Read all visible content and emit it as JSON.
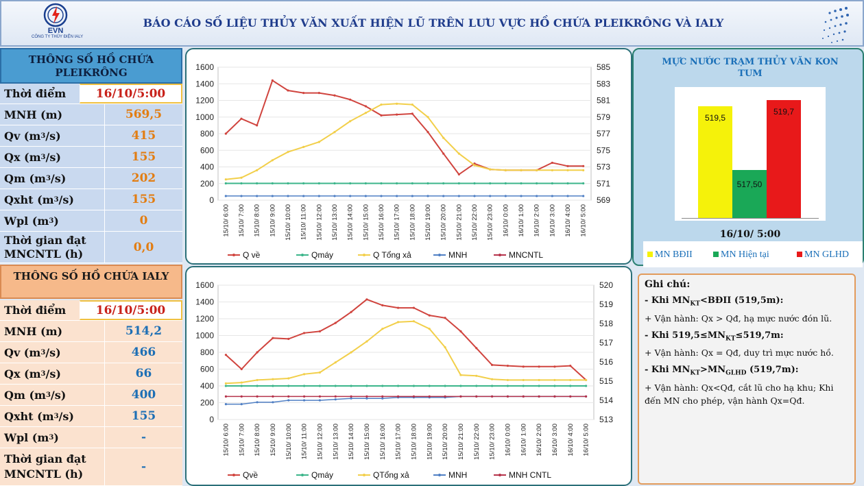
{
  "header": {
    "logo_text": "EVN",
    "logo_sub": "CÔNG TY THỦY ĐIỆN IALY",
    "title": "BÁO CÁO SỐ LIỆU THỦY VĂN XUẤT HIỆN LŨ TRÊN LƯU VỰC HỒ CHỨA PLEIKRÔNG VÀ IALY"
  },
  "pleikrong": {
    "title": "THÔNG SỐ HỒ CHỨA PLEIKRÔNG",
    "rows": [
      {
        "label": "Thời điểm",
        "value": "16/10/5:00"
      },
      {
        "label": "MNH (m)",
        "value": "569,5"
      },
      {
        "label": "Qv (m3/s)",
        "value": "415"
      },
      {
        "label": "Qx (m3/s)",
        "value": "155"
      },
      {
        "label": "Qm (m3/s)",
        "value": "202"
      },
      {
        "label": "Qxht (m3/s)",
        "value": "155"
      },
      {
        "label": "Wpl (m3)",
        "value": "0"
      },
      {
        "label": "Thời gian đạt MNCNTL (h)",
        "value": "0,0"
      }
    ]
  },
  "ialy": {
    "title": "THÔNG SỐ HỒ CHỨA IALY",
    "rows": [
      {
        "label": "Thời điểm",
        "value": "16/10/5:00"
      },
      {
        "label": "MNH (m)",
        "value": "514,2"
      },
      {
        "label": "Qv (m3/s)",
        "value": "466"
      },
      {
        "label": "Qx (m3/s)",
        "value": "66"
      },
      {
        "label": "Qm (m3/s)",
        "value": "400"
      },
      {
        "label": "Qxht (m3/s)",
        "value": "155"
      },
      {
        "label": "Wpl (m3)",
        "value": "-"
      },
      {
        "label": "Thời gian đạt MNCNTL (h)",
        "value": "-"
      }
    ]
  },
  "kontum": {
    "title": "MỰC NƯỚC TRẠM THỦY VĂN KON TUM",
    "date": "16/10/ 5:00",
    "bars": [
      {
        "label": "519,5",
        "value": 519.5,
        "color": "#f5f20a"
      },
      {
        "label": "517,50",
        "value": 517.5,
        "color": "#1aa857"
      },
      {
        "label": "519,7",
        "value": 519.7,
        "color": "#e8191a"
      }
    ],
    "legend": [
      "MN BĐII",
      "MN Hiện tại",
      "MN GLHD"
    ]
  },
  "notes": {
    "head": "Ghi chú:",
    "c1_pre": "- Khi  MN",
    "c1_sub": "KT",
    "c1_post": "<BĐII (519,5m):",
    "t1": "+ Vận hành: Qx > Qđ, hạ mực nước đón lũ.",
    "c2_pre": "- Khi 519,5≤MN",
    "c2_sub": "KT",
    "c2_post": "≤519,7m:",
    "t2": "+ Vận hành: Qx = Qđ, duy trì mực nước hồ.",
    "c3_pre": "- Khi MN",
    "c3_sub1": "KT",
    "c3_mid": ">MN",
    "c3_sub2": "GLHD",
    "c3_post": " (519,7m):",
    "t3": "+ Vận hành: Qx<Qđ, cắt lũ cho hạ khu; Khi đến MN cho phép, vận hành Qx=Qđ."
  },
  "chart_data": [
    {
      "type": "line",
      "title": "",
      "x": [
        "15/10/ 6:00",
        "15/10/ 7:00",
        "15/10/ 8:00",
        "15/10/ 9:00",
        "15/10/ 10:00",
        "15/10/ 11:00",
        "15/10/ 12:00",
        "15/10/ 13:00",
        "15/10/ 14:00",
        "15/10/ 15:00",
        "15/10/ 16:00",
        "15/10/ 17:00",
        "15/10/ 18:00",
        "15/10/ 19:00",
        "15/10/ 20:00",
        "15/10/ 21:00",
        "15/10/ 22:00",
        "15/10/ 23:00",
        "16/10/ 0:00",
        "16/10/ 1:00",
        "16/10/ 2:00",
        "16/10/ 3:00",
        "16/10/ 4:00",
        "16/10/ 5:00"
      ],
      "ylim": [
        0,
        1600
      ],
      "y2lim": [
        569,
        585
      ],
      "y_ticks": [
        "1600",
        "1400",
        "1200",
        "1000",
        "800",
        "600",
        "400",
        "200",
        "0"
      ],
      "y2_ticks": [
        "585",
        "583",
        "581",
        "579",
        "577",
        "575",
        "573",
        "571",
        "569"
      ],
      "series": [
        {
          "name": "Q về",
          "color": "#d0443e",
          "values": [
            800,
            980,
            900,
            1440,
            1320,
            1290,
            1290,
            1260,
            1210,
            1130,
            1020,
            1030,
            1040,
            820,
            560,
            310,
            440,
            370,
            360,
            360,
            360,
            450,
            410,
            410
          ]
        },
        {
          "name": "Qmáy",
          "color": "#3bb58a",
          "values": [
            202,
            202,
            202,
            202,
            202,
            202,
            202,
            202,
            202,
            202,
            202,
            202,
            202,
            202,
            202,
            202,
            202,
            202,
            202,
            202,
            202,
            202,
            202,
            202
          ]
        },
        {
          "name": "Q Tổng xả",
          "color": "#f2cf4a",
          "values": [
            250,
            270,
            360,
            480,
            580,
            640,
            700,
            820,
            950,
            1050,
            1150,
            1160,
            1150,
            1000,
            750,
            560,
            420,
            370,
            360,
            360,
            360,
            360,
            360,
            360
          ]
        },
        {
          "name": "MNH",
          "color": "#4f7fc4",
          "axis": "right",
          "values": [
            569.5,
            569.5,
            569.5,
            569.5,
            569.5,
            569.5,
            569.5,
            569.5,
            569.5,
            569.5,
            569.5,
            569.5,
            569.5,
            569.5,
            569.5,
            569.5,
            569.5,
            569.5,
            569.5,
            569.5,
            569.5,
            569.5,
            569.5,
            569.5
          ]
        },
        {
          "name": "MNCNTL",
          "color": "#b5324a"
        }
      ]
    },
    {
      "type": "line",
      "title": "",
      "x": [
        "15/10/ 6:00",
        "15/10/ 7:00",
        "15/10/ 8:00",
        "15/10/ 9:00",
        "15/10/ 10:00",
        "15/10/ 11:00",
        "15/10/ 12:00",
        "15/10/ 13:00",
        "15/10/ 14:00",
        "15/10/ 15:00",
        "15/10/ 16:00",
        "15/10/ 17:00",
        "15/10/ 18:00",
        "15/10/ 19:00",
        "15/10/ 20:00",
        "15/10/ 21:00",
        "15/10/ 22:00",
        "15/10/ 23:00",
        "16/10/ 0:00",
        "16/10/ 1:00",
        "16/10/ 2:00",
        "16/10/ 3:00",
        "16/10/ 4:00",
        "16/10/ 5:00"
      ],
      "ylim": [
        0,
        1600
      ],
      "y2lim": [
        513,
        520
      ],
      "y_ticks": [
        "1600",
        "1400",
        "1200",
        "1000",
        "800",
        "600",
        "400",
        "200",
        "0"
      ],
      "y2_ticks": [
        "520",
        "519",
        "518",
        "517",
        "516",
        "515",
        "514",
        "513"
      ],
      "series": [
        {
          "name": "Qvề",
          "color": "#d0443e",
          "values": [
            770,
            600,
            800,
            970,
            960,
            1030,
            1050,
            1150,
            1280,
            1430,
            1360,
            1330,
            1330,
            1240,
            1210,
            1050,
            850,
            650,
            640,
            630,
            630,
            630,
            640,
            470
          ]
        },
        {
          "name": "Qmáy",
          "color": "#3bb58a",
          "values": [
            400,
            400,
            400,
            400,
            400,
            400,
            400,
            400,
            400,
            400,
            400,
            400,
            400,
            400,
            400,
            400,
            400,
            400,
            400,
            400,
            400,
            400,
            400,
            400
          ]
        },
        {
          "name": "QTổng xả",
          "color": "#f2cf4a",
          "values": [
            430,
            440,
            470,
            480,
            490,
            540,
            560,
            680,
            800,
            930,
            1080,
            1160,
            1170,
            1080,
            860,
            530,
            520,
            480,
            470,
            470,
            470,
            470,
            470,
            470
          ]
        },
        {
          "name": "MNH",
          "color": "#4f7fc4",
          "axis": "right",
          "values": [
            513.8,
            513.8,
            513.9,
            513.9,
            514.0,
            514.0,
            514.0,
            514.05,
            514.1,
            514.1,
            514.1,
            514.15,
            514.15,
            514.15,
            514.15,
            514.2,
            514.2,
            514.2,
            514.2,
            514.2,
            514.2,
            514.2,
            514.2,
            514.2
          ]
        },
        {
          "name": "MNH CNTL",
          "color": "#b5324a",
          "axis": "right",
          "values": [
            514.2,
            514.2,
            514.2,
            514.2,
            514.2,
            514.2,
            514.2,
            514.2,
            514.2,
            514.2,
            514.2,
            514.2,
            514.2,
            514.2,
            514.2,
            514.2,
            514.2,
            514.2,
            514.2,
            514.2,
            514.2,
            514.2,
            514.2,
            514.2
          ]
        }
      ]
    }
  ]
}
